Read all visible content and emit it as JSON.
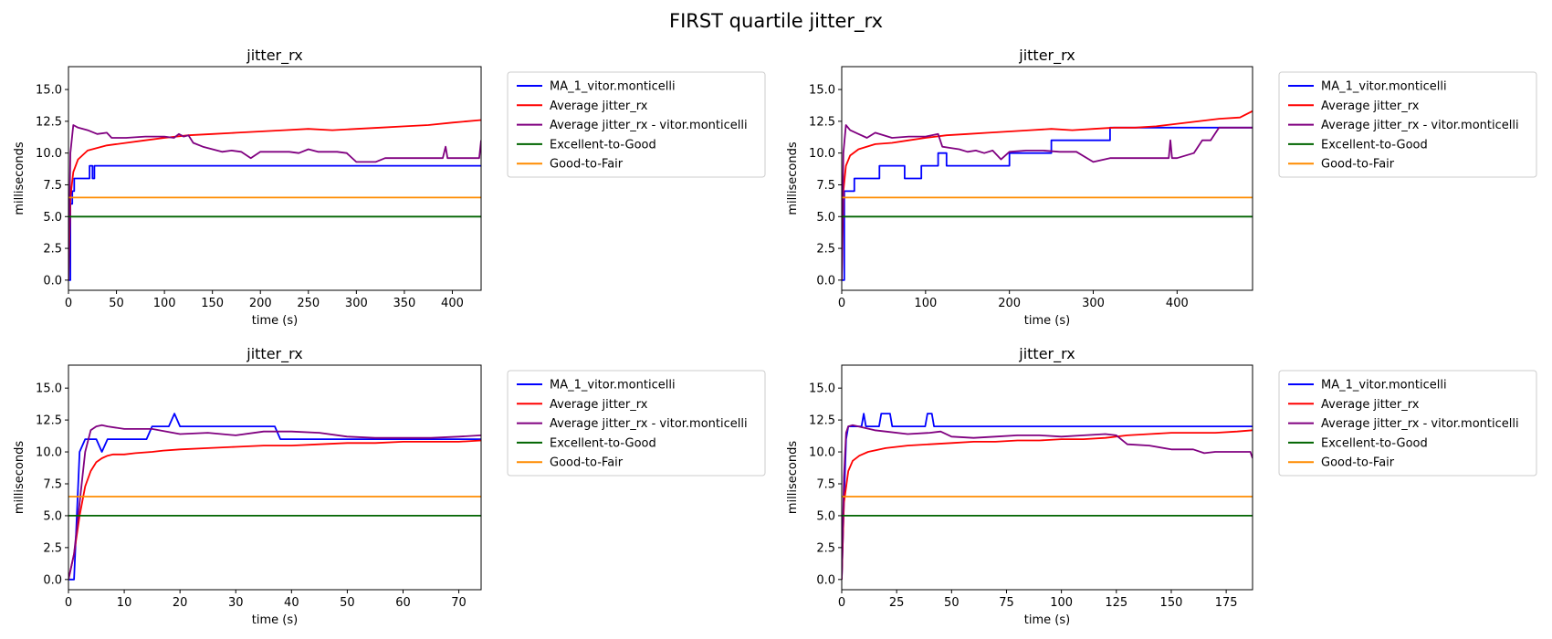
{
  "suptitle": "FIRST quartile jitter_rx",
  "colors": {
    "ma": "#0000ff",
    "avg": "#ff0000",
    "avg_user": "#800080",
    "excellent_to_good": "#006400",
    "good_to_fair": "#ff8c00"
  },
  "chart_data": [
    {
      "type": "line",
      "title": "jitter_rx",
      "xlabel": "time (s)",
      "ylabel": "milliseconds",
      "xlim": [
        0,
        430
      ],
      "ylim": [
        -0.8,
        16.8
      ],
      "xticks": [
        0,
        50,
        100,
        150,
        200,
        250,
        300,
        350,
        400
      ],
      "yticks": [
        0.0,
        2.5,
        5.0,
        7.5,
        10.0,
        12.5,
        15.0
      ],
      "legend_position": "outside-right-top",
      "series": [
        {
          "name": "MA_1_vitor.monticelli",
          "color_key": "ma",
          "step": true,
          "x": [
            0,
            2,
            4,
            6,
            20,
            22,
            25,
            27,
            30,
            430
          ],
          "y": [
            0,
            6,
            7,
            8,
            8,
            9,
            8,
            9,
            9,
            9
          ]
        },
        {
          "name": "Average jitter_rx",
          "color_key": "avg",
          "step": false,
          "x": [
            0,
            2,
            5,
            10,
            20,
            40,
            60,
            80,
            100,
            125,
            150,
            175,
            200,
            225,
            250,
            275,
            300,
            325,
            350,
            375,
            400,
            430
          ],
          "y": [
            0,
            6.5,
            8.5,
            9.5,
            10.2,
            10.6,
            10.8,
            11.0,
            11.2,
            11.4,
            11.5,
            11.6,
            11.7,
            11.8,
            11.9,
            11.8,
            11.9,
            12.0,
            12.1,
            12.2,
            12.4,
            12.6
          ]
        },
        {
          "name": "Average jitter_rx - vitor.monticelli",
          "color_key": "avg_user",
          "step": false,
          "x": [
            0,
            2,
            5,
            10,
            20,
            30,
            40,
            45,
            60,
            80,
            100,
            110,
            115,
            120,
            125,
            130,
            140,
            150,
            160,
            170,
            180,
            190,
            200,
            210,
            220,
            230,
            240,
            250,
            260,
            270,
            280,
            290,
            300,
            310,
            320,
            330,
            340,
            350,
            360,
            370,
            380,
            390,
            393,
            395,
            400,
            410,
            420,
            428,
            430
          ],
          "y": [
            0,
            10,
            12.2,
            12.0,
            11.8,
            11.5,
            11.6,
            11.2,
            11.2,
            11.3,
            11.3,
            11.2,
            11.5,
            11.3,
            11.4,
            10.8,
            10.5,
            10.3,
            10.1,
            10.2,
            10.1,
            9.6,
            10.1,
            10.1,
            10.1,
            10.1,
            10.0,
            10.3,
            10.1,
            10.1,
            10.1,
            10.0,
            9.3,
            9.3,
            9.3,
            9.6,
            9.6,
            9.6,
            9.6,
            9.6,
            9.6,
            9.6,
            10.5,
            9.6,
            9.6,
            9.6,
            9.6,
            9.6,
            11
          ]
        },
        {
          "name": "Excellent-to-Good",
          "color_key": "excellent_to_good",
          "step": false,
          "x": [
            0,
            430
          ],
          "y": [
            5,
            5
          ]
        },
        {
          "name": "Good-to-Fair",
          "color_key": "good_to_fair",
          "step": false,
          "x": [
            0,
            430
          ],
          "y": [
            6.5,
            6.5
          ]
        }
      ]
    },
    {
      "type": "line",
      "title": "jitter_rx",
      "xlabel": "time (s)",
      "ylabel": "milliseconds",
      "xlim": [
        0,
        490
      ],
      "ylim": [
        -0.8,
        16.8
      ],
      "xticks": [
        0,
        100,
        200,
        300,
        400
      ],
      "yticks": [
        0.0,
        2.5,
        5.0,
        7.5,
        10.0,
        12.5,
        15.0
      ],
      "legend_position": "outside-right-top",
      "series": [
        {
          "name": "MA_1_vitor.monticelli",
          "color_key": "ma",
          "step": true,
          "x": [
            0,
            3,
            15,
            45,
            75,
            95,
            100,
            115,
            125,
            200,
            250,
            320,
            490
          ],
          "y": [
            0,
            7,
            8,
            9,
            8,
            9,
            9,
            10,
            9,
            10,
            11,
            12,
            12
          ]
        },
        {
          "name": "Average jitter_rx",
          "color_key": "avg",
          "step": false,
          "x": [
            0,
            2,
            5,
            10,
            20,
            40,
            60,
            80,
            100,
            125,
            150,
            175,
            200,
            225,
            250,
            275,
            300,
            325,
            350,
            375,
            400,
            425,
            450,
            475,
            490
          ],
          "y": [
            0,
            7,
            9,
            9.8,
            10.3,
            10.7,
            10.8,
            11.0,
            11.2,
            11.4,
            11.5,
            11.6,
            11.7,
            11.8,
            11.9,
            11.8,
            11.9,
            12.0,
            12.0,
            12.1,
            12.3,
            12.5,
            12.7,
            12.8,
            13.3
          ]
        },
        {
          "name": "Average jitter_rx - vitor.monticelli",
          "color_key": "avg_user",
          "step": false,
          "x": [
            0,
            2,
            5,
            10,
            20,
            30,
            40,
            60,
            80,
            100,
            115,
            120,
            130,
            140,
            150,
            160,
            170,
            180,
            190,
            200,
            220,
            240,
            260,
            280,
            300,
            320,
            340,
            360,
            380,
            390,
            392,
            394,
            400,
            420,
            430,
            440,
            450,
            490
          ],
          "y": [
            0,
            10,
            12.2,
            11.8,
            11.5,
            11.2,
            11.6,
            11.2,
            11.3,
            11.3,
            11.5,
            10.5,
            10.4,
            10.3,
            10.1,
            10.2,
            10.0,
            10.2,
            9.5,
            10.1,
            10.2,
            10.2,
            10.1,
            10.1,
            9.3,
            9.6,
            9.6,
            9.6,
            9.6,
            9.6,
            11.0,
            9.6,
            9.6,
            10.0,
            11.0,
            11.0,
            12.0,
            12.0
          ]
        },
        {
          "name": "Excellent-to-Good",
          "color_key": "excellent_to_good",
          "step": false,
          "x": [
            0,
            490
          ],
          "y": [
            5,
            5
          ]
        },
        {
          "name": "Good-to-Fair",
          "color_key": "good_to_fair",
          "step": false,
          "x": [
            0,
            490
          ],
          "y": [
            6.5,
            6.5
          ]
        }
      ]
    },
    {
      "type": "line",
      "title": "jitter_rx",
      "xlabel": "time (s)",
      "ylabel": "milliseconds",
      "xlim": [
        0,
        74
      ],
      "ylim": [
        -0.8,
        16.8
      ],
      "xticks": [
        0,
        10,
        20,
        30,
        40,
        50,
        60,
        70
      ],
      "yticks": [
        0.0,
        2.5,
        5.0,
        7.5,
        10.0,
        12.5,
        15.0
      ],
      "legend_position": "outside-right-top",
      "series": [
        {
          "name": "MA_1_vitor.monticelli",
          "color_key": "ma",
          "step": false,
          "x": [
            0,
            1,
            2,
            3,
            5,
            6,
            7,
            8,
            9,
            10,
            14,
            15,
            18,
            19,
            20,
            37,
            38,
            40,
            74
          ],
          "y": [
            0,
            0,
            10,
            11,
            11,
            10,
            11,
            11,
            11,
            11,
            11,
            12,
            12,
            13,
            12,
            12,
            11,
            11,
            11
          ]
        },
        {
          "name": "Average jitter_rx",
          "color_key": "avg",
          "step": false,
          "x": [
            0,
            1,
            2,
            3,
            4,
            5,
            6,
            7,
            8,
            10,
            12,
            15,
            17,
            20,
            25,
            30,
            35,
            40,
            45,
            50,
            55,
            60,
            65,
            70,
            74
          ],
          "y": [
            0,
            2,
            5,
            7.3,
            8.5,
            9.2,
            9.5,
            9.7,
            9.8,
            9.8,
            9.9,
            10.0,
            10.1,
            10.2,
            10.3,
            10.4,
            10.5,
            10.5,
            10.6,
            10.7,
            10.7,
            10.8,
            10.8,
            10.8,
            10.9
          ]
        },
        {
          "name": "Average jitter_rx - vitor.monticelli",
          "color_key": "avg_user",
          "step": false,
          "x": [
            0,
            1,
            2,
            3,
            4,
            5,
            6,
            7,
            10,
            15,
            20,
            25,
            30,
            35,
            40,
            45,
            50,
            55,
            60,
            65,
            70,
            74
          ],
          "y": [
            0,
            2,
            6,
            10,
            11.7,
            12.0,
            12.1,
            12.0,
            11.8,
            11.8,
            11.4,
            11.5,
            11.3,
            11.6,
            11.6,
            11.5,
            11.2,
            11.1,
            11.1,
            11.1,
            11.2,
            11.3
          ]
        },
        {
          "name": "Excellent-to-Good",
          "color_key": "excellent_to_good",
          "step": false,
          "x": [
            0,
            74
          ],
          "y": [
            5,
            5
          ]
        },
        {
          "name": "Good-to-Fair",
          "color_key": "good_to_fair",
          "step": false,
          "x": [
            0,
            74
          ],
          "y": [
            6.5,
            6.5
          ]
        }
      ]
    },
    {
      "type": "line",
      "title": "jitter_rx",
      "xlabel": "time (s)",
      "ylabel": "milliseconds",
      "xlim": [
        0,
        187
      ],
      "ylim": [
        -0.8,
        16.8
      ],
      "xticks": [
        0,
        25,
        50,
        75,
        100,
        125,
        150,
        175
      ],
      "yticks": [
        0.0,
        2.5,
        5.0,
        7.5,
        10.0,
        12.5,
        15.0
      ],
      "legend_position": "outside-right-top",
      "series": [
        {
          "name": "MA_1_vitor.monticelli",
          "color_key": "ma",
          "step": false,
          "x": [
            0,
            1,
            2,
            3,
            9,
            10,
            11,
            17,
            18,
            22,
            23,
            38,
            39,
            41,
            42,
            187
          ],
          "y": [
            0,
            6,
            11,
            12,
            12,
            13,
            12,
            12,
            13,
            13,
            12,
            12,
            13,
            13,
            12,
            12
          ]
        },
        {
          "name": "Average jitter_rx",
          "color_key": "avg",
          "step": false,
          "x": [
            0,
            1,
            3,
            5,
            8,
            12,
            20,
            30,
            40,
            50,
            60,
            70,
            80,
            90,
            100,
            110,
            120,
            130,
            140,
            150,
            160,
            170,
            180,
            187
          ],
          "y": [
            0,
            6,
            8.5,
            9.3,
            9.7,
            10.0,
            10.3,
            10.5,
            10.6,
            10.7,
            10.8,
            10.8,
            10.9,
            10.9,
            11.0,
            11.0,
            11.1,
            11.3,
            11.4,
            11.5,
            11.5,
            11.5,
            11.6,
            11.7
          ]
        },
        {
          "name": "Average jitter_rx - vitor.monticelli",
          "color_key": "avg_user",
          "step": false,
          "x": [
            0,
            1,
            2,
            3,
            5,
            10,
            15,
            20,
            30,
            40,
            45,
            50,
            60,
            70,
            80,
            90,
            100,
            110,
            120,
            125,
            130,
            140,
            150,
            160,
            165,
            170,
            180,
            186,
            187
          ],
          "y": [
            0,
            8,
            11.5,
            12.0,
            12.1,
            11.9,
            11.7,
            11.6,
            11.4,
            11.5,
            11.6,
            11.2,
            11.1,
            11.2,
            11.3,
            11.3,
            11.2,
            11.3,
            11.4,
            11.3,
            10.6,
            10.5,
            10.2,
            10.2,
            9.9,
            10.0,
            10.0,
            10.0,
            9.5
          ]
        },
        {
          "name": "Excellent-to-Good",
          "color_key": "excellent_to_good",
          "step": false,
          "x": [
            0,
            187
          ],
          "y": [
            5,
            5
          ]
        },
        {
          "name": "Good-to-Fair",
          "color_key": "good_to_fair",
          "step": false,
          "x": [
            0,
            187
          ],
          "y": [
            6.5,
            6.5
          ]
        }
      ]
    }
  ]
}
